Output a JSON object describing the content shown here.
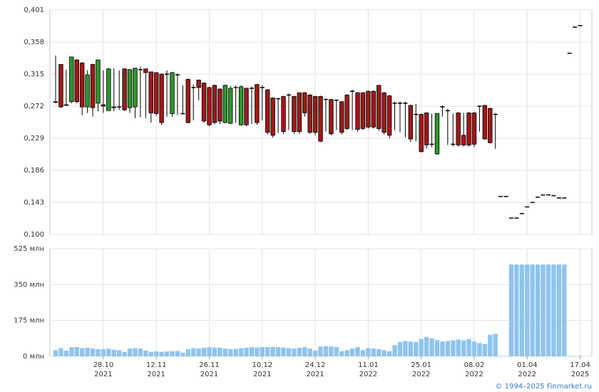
{
  "chart_data": {
    "type": "candlestick",
    "categories": [
      null,
      null,
      null,
      null,
      null,
      null,
      null,
      null,
      null,
      [
        "28.10",
        "2021"
      ],
      null,
      null,
      null,
      null,
      null,
      null,
      null,
      null,
      null,
      [
        "12.11",
        "2021"
      ],
      null,
      null,
      null,
      null,
      null,
      null,
      null,
      null,
      null,
      [
        "26.11",
        "2021"
      ],
      null,
      null,
      null,
      null,
      null,
      null,
      null,
      null,
      null,
      [
        "10.12",
        "2021"
      ],
      null,
      null,
      null,
      null,
      null,
      null,
      null,
      null,
      null,
      [
        "24.12",
        "2021"
      ],
      null,
      null,
      null,
      null,
      null,
      null,
      null,
      null,
      null,
      [
        "11.01",
        "2022"
      ],
      null,
      null,
      null,
      null,
      null,
      null,
      null,
      null,
      null,
      [
        "25.01",
        "2022"
      ],
      null,
      null,
      null,
      null,
      null,
      null,
      null,
      null,
      null,
      [
        "08.02",
        "2022"
      ],
      null,
      null,
      null,
      null,
      null,
      null,
      null,
      null,
      null,
      [
        "01.04",
        "2022"
      ],
      null,
      null,
      null,
      null,
      null,
      null,
      null,
      null,
      null,
      [
        "17.04",
        "2025"
      ]
    ],
    "open": [
      0.277,
      0.328,
      0.274,
      0.278,
      0.334,
      0.33,
      0.271,
      0.328,
      0.276,
      0.274,
      0.266,
      0.27,
      0.271,
      0.322,
      0.27,
      0.271,
      0.321,
      0.322,
      0.318,
      0.317,
      0.315,
      0.315,
      0.262,
      0.314,
      0.262,
      0.308,
      0.297,
      0.307,
      0.303,
      0.297,
      0.3,
      0.295,
      0.25,
      0.249,
      0.297,
      0.247,
      0.296,
      0.296,
      0.301,
      0.297,
      0.294,
      0.283,
      0.282,
      0.285,
      0.287,
      0.285,
      0.29,
      0.29,
      0.287,
      0.285,
      0.285,
      0.281,
      0.281,
      0.28,
      0.278,
      0.287,
      0.292,
      0.29,
      0.29,
      0.292,
      0.292,
      0.3,
      0.29,
      0.286,
      0.276,
      0.276,
      0.276,
      0.273,
      0.261,
      0.261,
      0.263,
      0.221,
      0.208,
      0.271,
      0.266,
      0.221,
      0.263,
      0.233,
      0.263,
      0.263,
      0.272,
      0.273,
      0.269,
      0.261,
      0.151,
      0.151,
      0.122,
      0.122,
      0.128,
      0.137,
      0.143,
      0.15,
      0.153,
      0.153,
      0.152,
      0.149,
      0.149,
      0.343,
      0.378,
      0.38
    ],
    "high": [
      0.34,
      0.328,
      0.321,
      0.338,
      0.335,
      0.331,
      0.32,
      0.329,
      0.334,
      0.32,
      0.323,
      0.323,
      0.32,
      0.323,
      0.322,
      0.323,
      0.325,
      0.322,
      0.318,
      0.317,
      0.316,
      0.32,
      0.318,
      0.316,
      0.3,
      0.309,
      0.301,
      0.308,
      0.304,
      0.298,
      0.301,
      0.296,
      0.301,
      0.299,
      0.3,
      0.3,
      0.297,
      0.298,
      0.302,
      0.3,
      0.295,
      0.284,
      0.283,
      0.286,
      0.289,
      0.286,
      0.29,
      0.291,
      0.288,
      0.286,
      0.286,
      0.282,
      0.282,
      0.281,
      0.279,
      0.288,
      0.294,
      0.291,
      0.291,
      0.293,
      0.293,
      0.3,
      0.291,
      0.287,
      0.278,
      0.278,
      0.278,
      0.274,
      0.275,
      0.262,
      0.264,
      0.262,
      0.263,
      0.273,
      0.268,
      0.262,
      0.264,
      0.263,
      0.264,
      0.264,
      0.273,
      0.274,
      0.27,
      0.263,
      0.151,
      0.151,
      0.122,
      0.122,
      0.128,
      0.137,
      0.143,
      0.15,
      0.153,
      0.153,
      0.152,
      0.149,
      0.149,
      0.343,
      0.378,
      0.38
    ],
    "low": [
      0.276,
      0.27,
      0.273,
      0.276,
      0.276,
      0.26,
      0.263,
      0.258,
      0.265,
      0.263,
      0.266,
      0.265,
      0.267,
      0.266,
      0.263,
      0.256,
      0.257,
      0.256,
      0.25,
      0.259,
      0.247,
      0.258,
      0.258,
      0.26,
      0.261,
      0.249,
      0.253,
      0.28,
      0.25,
      0.245,
      0.248,
      0.248,
      0.249,
      0.248,
      0.25,
      0.246,
      0.245,
      0.248,
      0.247,
      0.253,
      0.234,
      0.23,
      0.236,
      0.235,
      0.24,
      0.235,
      0.235,
      0.258,
      0.235,
      0.233,
      0.224,
      0.238,
      0.233,
      0.24,
      0.234,
      0.24,
      0.24,
      0.238,
      0.24,
      0.242,
      0.242,
      0.239,
      0.234,
      0.229,
      0.24,
      0.237,
      0.23,
      0.224,
      0.225,
      0.21,
      0.215,
      0.217,
      0.207,
      0.258,
      0.22,
      0.218,
      0.218,
      0.218,
      0.218,
      0.217,
      0.238,
      0.227,
      0.222,
      0.215,
      0.151,
      0.151,
      0.122,
      0.122,
      0.128,
      0.137,
      0.143,
      0.15,
      0.153,
      0.153,
      0.152,
      0.149,
      0.149,
      0.343,
      0.378,
      0.38
    ],
    "close": [
      0.278,
      0.271,
      0.273,
      0.338,
      0.278,
      0.271,
      0.314,
      0.27,
      0.334,
      0.272,
      0.322,
      0.271,
      0.271,
      0.267,
      0.321,
      0.323,
      0.321,
      0.317,
      0.263,
      0.262,
      0.25,
      0.315,
      0.317,
      0.314,
      0.262,
      0.25,
      0.297,
      0.297,
      0.252,
      0.247,
      0.25,
      0.252,
      0.3,
      0.296,
      0.297,
      0.298,
      0.247,
      0.296,
      0.25,
      0.297,
      0.237,
      0.233,
      0.282,
      0.238,
      0.287,
      0.238,
      0.238,
      0.263,
      0.237,
      0.237,
      0.225,
      0.281,
      0.235,
      0.28,
      0.237,
      0.242,
      0.292,
      0.241,
      0.242,
      0.244,
      0.244,
      0.242,
      0.237,
      0.233,
      0.276,
      0.276,
      0.276,
      0.228,
      0.261,
      0.211,
      0.22,
      0.221,
      0.262,
      0.271,
      0.266,
      0.221,
      0.22,
      0.22,
      0.22,
      0.221,
      0.272,
      0.228,
      0.223,
      0.261,
      0.151,
      0.151,
      0.122,
      0.122,
      0.128,
      0.137,
      0.143,
      0.15,
      0.153,
      0.153,
      0.152,
      0.149,
      0.149,
      0.343,
      0.378,
      0.38
    ],
    "colors": {
      "up": "#2e962e",
      "down": "#a01818",
      "flat": "#000000"
    },
    "ylim": [
      0.1,
      0.401
    ],
    "yticks": [
      {
        "value": 0.1,
        "label": "0,100"
      },
      {
        "value": 0.143,
        "label": "0,143"
      },
      {
        "value": 0.186,
        "label": "0,186"
      },
      {
        "value": 0.229,
        "label": "0,229"
      },
      {
        "value": 0.272,
        "label": "0,272"
      },
      {
        "value": 0.315,
        "label": "0,315"
      },
      {
        "value": 0.358,
        "label": "0,358"
      },
      {
        "value": 0.401,
        "label": "0,401"
      }
    ],
    "volume": {
      "color": "#8fc4ee",
      "values": [
        30,
        40,
        28,
        45,
        45,
        40,
        42,
        38,
        35,
        35,
        37,
        33,
        30,
        22,
        38,
        40,
        38,
        28,
        22,
        24,
        22,
        24,
        25,
        26,
        18,
        35,
        40,
        38,
        42,
        45,
        43,
        42,
        38,
        35,
        37,
        40,
        42,
        45,
        43,
        45,
        45,
        46,
        45,
        43,
        40,
        38,
        42,
        45,
        38,
        28,
        48,
        50,
        48,
        45,
        25,
        30,
        38,
        45,
        30,
        40,
        38,
        35,
        30,
        25,
        55,
        70,
        75,
        72,
        70,
        85,
        95,
        88,
        80,
        72,
        75,
        78,
        82,
        78,
        85,
        72,
        65,
        60,
        105,
        110,
        2,
        2,
        448,
        448,
        448,
        448,
        448,
        448,
        448,
        448,
        448,
        448,
        448,
        2,
        2,
        2
      ],
      "ylim": [
        0,
        525
      ],
      "yticks": [
        {
          "value": 0,
          "label": "0 млн"
        },
        {
          "value": 175,
          "label": "175 млн"
        },
        {
          "value": 350,
          "label": "350 млн"
        },
        {
          "value": 525,
          "label": "525 млн"
        }
      ]
    },
    "grid": true,
    "credit": "© 1994–2025 Finmarket.ru"
  }
}
